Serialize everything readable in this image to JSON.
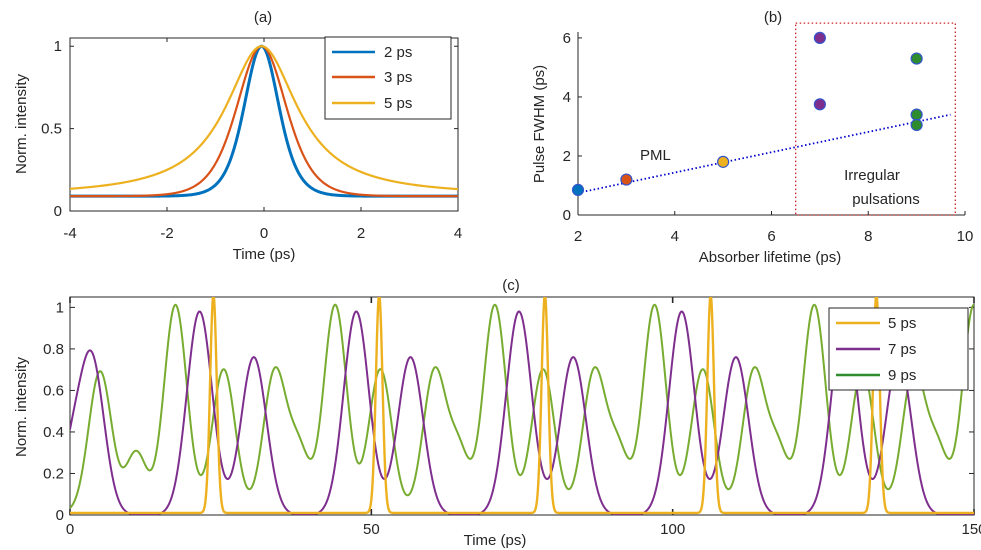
{
  "chart_data": [
    {
      "id": "a",
      "panel_label": "(a)",
      "type": "line",
      "xlabel": "Time (ps)",
      "ylabel": "Norm. intensity",
      "xlim": [
        -4,
        4
      ],
      "ylim": [
        0,
        1.05
      ],
      "xticks": [
        "-4",
        "-2",
        "0",
        "2",
        "4"
      ],
      "yticks": [
        "0",
        "0.5",
        "1"
      ],
      "legend_position": "top-right",
      "series": [
        {
          "name": "2 ps",
          "color": "#0072BD",
          "shape": "sech2",
          "center": -0.05,
          "fwhm": 0.85,
          "floor": 0.09,
          "x": [
            -4,
            -3,
            -2,
            -1.5,
            -1,
            -0.75,
            -0.5,
            -0.25,
            0,
            0.25,
            0.5,
            0.75,
            1,
            1.5,
            2,
            3,
            4
          ],
          "values": [
            0.09,
            0.09,
            0.09,
            0.1,
            0.14,
            0.22,
            0.42,
            0.8,
            1,
            0.8,
            0.42,
            0.22,
            0.14,
            0.1,
            0.09,
            0.09,
            0.09
          ]
        },
        {
          "name": "3 ps",
          "color": "#D95319",
          "shape": "sech2",
          "center": -0.05,
          "fwhm": 1.2,
          "floor": 0.09,
          "x": [
            -4,
            -3,
            -2,
            -1.5,
            -1,
            -0.75,
            -0.5,
            -0.25,
            0,
            0.25,
            0.5,
            0.75,
            1,
            1.5,
            2,
            3,
            4
          ],
          "values": [
            0.09,
            0.09,
            0.1,
            0.12,
            0.24,
            0.4,
            0.64,
            0.9,
            1,
            0.9,
            0.64,
            0.4,
            0.24,
            0.12,
            0.1,
            0.09,
            0.09
          ]
        },
        {
          "name": "5 ps",
          "color": "#EDB120",
          "shape": "lorentz",
          "center": -0.05,
          "fwhm": 1.8,
          "floor": 0.09,
          "x": [
            -4,
            -3,
            -2,
            -1.5,
            -1,
            -0.75,
            -0.5,
            -0.25,
            0,
            0.25,
            0.5,
            0.75,
            1,
            1.5,
            2,
            3,
            4
          ],
          "values": [
            0.1,
            0.12,
            0.2,
            0.32,
            0.5,
            0.64,
            0.8,
            0.95,
            1,
            0.95,
            0.8,
            0.64,
            0.5,
            0.32,
            0.2,
            0.12,
            0.1
          ]
        }
      ]
    },
    {
      "id": "b",
      "panel_label": "(b)",
      "type": "scatter",
      "xlabel": "Absorber lifetime (ps)",
      "ylabel": "Pulse FWHM (ps)",
      "xlim": [
        2,
        10
      ],
      "ylim": [
        0,
        6.2
      ],
      "xticks": [
        "2",
        "4",
        "6",
        "8",
        "10"
      ],
      "yticks": [
        "0",
        "2",
        "4",
        "6"
      ],
      "points": [
        {
          "x": 2,
          "y": 0.85,
          "color": "#0072BD"
        },
        {
          "x": 3,
          "y": 1.2,
          "color": "#D95319"
        },
        {
          "x": 5,
          "y": 1.8,
          "color": "#EDB120"
        },
        {
          "x": 7,
          "y": 6.0,
          "color": "#7E2F8E"
        },
        {
          "x": 7,
          "y": 3.75,
          "color": "#7E2F8E"
        },
        {
          "x": 9,
          "y": 5.3,
          "color": "#2E8B2E"
        },
        {
          "x": 9,
          "y": 3.4,
          "color": "#2E8B2E"
        },
        {
          "x": 9,
          "y": 3.05,
          "color": "#2E8B2E"
        }
      ],
      "trendline": {
        "x": [
          2,
          9.7
        ],
        "y": [
          0.75,
          3.4
        ],
        "color": "#0000CD",
        "style": "dotted"
      },
      "annotations": [
        "PML",
        "Irregular",
        "pulsations"
      ],
      "region": {
        "x": [
          6.5,
          9.8
        ],
        "y": [
          0,
          6.5
        ],
        "color": "#CC2222",
        "style": "dotted"
      }
    },
    {
      "id": "c",
      "panel_label": "(c)",
      "type": "line",
      "xlabel": "Time (ps)",
      "ylabel": "Norm. intensity",
      "xlim": [
        0,
        150
      ],
      "ylim": [
        0,
        1.05
      ],
      "xticks": [
        "0",
        "50",
        "100",
        "150"
      ],
      "yticks": [
        "0",
        "0.2",
        "0.4",
        "0.6",
        "0.8",
        "1"
      ],
      "legend_position": "top-right",
      "series": [
        {
          "name": "5 ps",
          "color": "#EDB120",
          "peaks": [
            23.8,
            51.3,
            78.8,
            106.3,
            133.8
          ],
          "peak_height": 1.05,
          "peak_width": 0.55,
          "period": 27.5
        },
        {
          "name": "7 ps",
          "color": "#7E2F8E",
          "peak_times": [
            3.5,
            21.5,
            30.5,
            47.5,
            56.5,
            74.5,
            83.5,
            101.5,
            110.5,
            128.5,
            137.5
          ],
          "peak_heights": [
            0.77,
            0.98,
            0.76,
            0.98,
            0.76,
            0.98,
            0.76,
            0.98,
            0.76,
            0.98,
            0.76
          ],
          "peak_width": 2.1
        },
        {
          "name": "9 ps",
          "color": "#77AC30",
          "legend_color": "#2E8B2E",
          "peak_times": [
            5.0,
            17.5,
            25.5,
            34.0,
            44.0,
            51.5,
            60.5,
            70.5,
            78.5,
            87.0,
            97.0,
            105.0,
            113.5,
            123.5,
            131.5,
            140.0,
            150.0
          ],
          "peak_heights": [
            0.68,
            1.0,
            0.69,
            0.68,
            1.0,
            0.69,
            0.68,
            1.0,
            0.69,
            0.68,
            1.0,
            0.69,
            0.68,
            1.0,
            0.69,
            0.68,
            1.0
          ],
          "peak_width": 1.9,
          "shoulder_times": [
            11.0,
            38.0,
            64.5,
            91.0,
            117.5,
            144.0
          ],
          "shoulder_height": 0.29
        }
      ]
    }
  ]
}
